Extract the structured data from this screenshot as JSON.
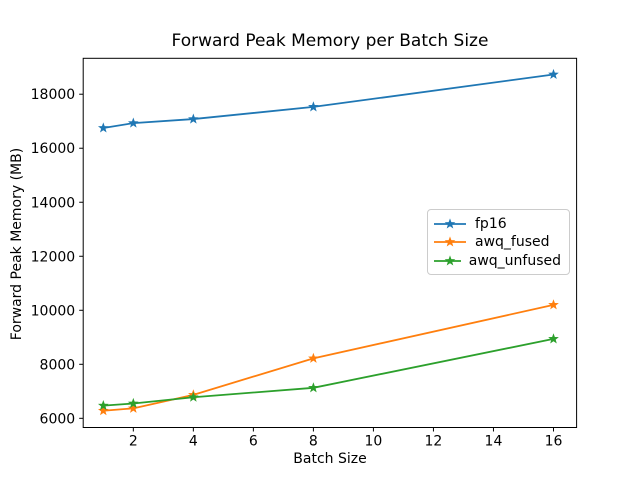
{
  "chart_data": {
    "type": "line",
    "title": "Forward Peak Memory per Batch Size",
    "xlabel": "Batch Size",
    "ylabel": "Forward Peak Memory (MB)",
    "x": [
      1,
      2,
      4,
      8,
      16
    ],
    "series": [
      {
        "name": "fp16",
        "color": "#1f77b4",
        "values": [
          16750,
          16930,
          17080,
          17530,
          18730
        ]
      },
      {
        "name": "awq_fused",
        "color": "#ff7f0e",
        "values": [
          6280,
          6370,
          6870,
          8220,
          10200
        ]
      },
      {
        "name": "awq_unfused",
        "color": "#2ca02c",
        "values": [
          6470,
          6550,
          6780,
          7130,
          8940
        ]
      }
    ],
    "x_ticks": [
      2,
      4,
      6,
      8,
      10,
      12,
      14,
      16
    ],
    "y_ticks": [
      6000,
      8000,
      10000,
      12000,
      14000,
      16000,
      18000
    ],
    "xlim": [
      0.33,
      16.77
    ],
    "ylim": [
      5660,
      19330
    ],
    "grid": false,
    "marker": "star",
    "legend_position": "center right",
    "axis_color": "#000000"
  }
}
